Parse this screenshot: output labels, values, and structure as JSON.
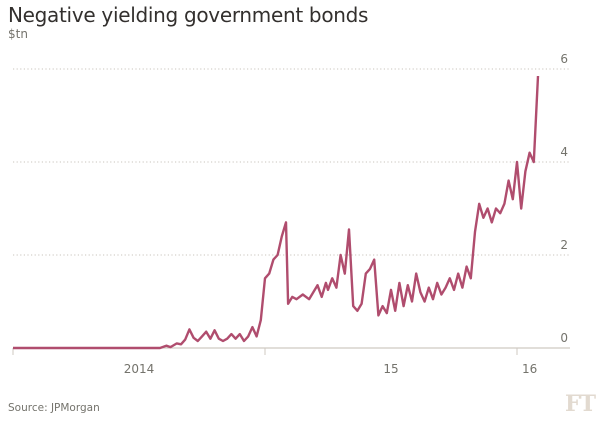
{
  "header": {
    "title": "Negative yielding government bonds",
    "unit": "$tn"
  },
  "footer": {
    "source": "Source: JPMorgan",
    "logo": "FT"
  },
  "colors": {
    "line": "#b04d6e",
    "grid": "#c9c4bd",
    "axis": "#cfc9c2",
    "text": "#74736c",
    "logo": "#e2dad0"
  },
  "chart_data": {
    "type": "line",
    "title": "Negative yielding government bonds",
    "ylabel": "$tn",
    "xlabel": "",
    "x_unit": "months since Jan 2014",
    "xlim": [
      0,
      26.4
    ],
    "ylim": [
      0,
      6
    ],
    "y_ticks": [
      0,
      2,
      4,
      6
    ],
    "y_tick_labels": [
      "0",
      "2",
      "4",
      "6"
    ],
    "x_ticks": [
      0,
      12,
      24
    ],
    "x_tick_labels": [
      {
        "label": "2014",
        "at": 6
      },
      {
        "label": "15",
        "at": 18
      },
      {
        "label": "16",
        "at": 24.6
      }
    ],
    "grid": true,
    "legend": "none",
    "series": [
      {
        "name": "Negative yielding government bonds",
        "x": [
          0,
          7.0,
          7.3,
          7.5,
          7.8,
          8.0,
          8.2,
          8.4,
          8.6,
          8.8,
          9.0,
          9.2,
          9.4,
          9.6,
          9.8,
          10.0,
          10.2,
          10.4,
          10.6,
          10.8,
          11.0,
          11.2,
          11.4,
          11.6,
          11.8,
          12.0,
          12.2,
          12.4,
          12.6,
          12.8,
          13.0,
          13.1,
          13.3,
          13.5,
          13.8,
          14.1,
          14.3,
          14.5,
          14.7,
          14.9,
          15.0,
          15.2,
          15.4,
          15.6,
          15.8,
          16.0,
          16.2,
          16.4,
          16.6,
          16.8,
          17.0,
          17.2,
          17.4,
          17.6,
          17.8,
          18.0,
          18.2,
          18.4,
          18.6,
          18.8,
          19.0,
          19.2,
          19.4,
          19.6,
          19.8,
          20.0,
          20.2,
          20.4,
          20.6,
          20.8,
          21.0,
          21.2,
          21.4,
          21.6,
          21.8,
          22.0,
          22.2,
          22.4,
          22.6,
          22.8,
          23.0,
          23.2,
          23.4,
          23.6,
          23.8,
          24.0,
          24.2,
          24.4,
          24.6,
          24.8,
          25.0
        ],
        "values": [
          0,
          0,
          0.05,
          0.02,
          0.1,
          0.08,
          0.18,
          0.4,
          0.22,
          0.15,
          0.25,
          0.35,
          0.2,
          0.38,
          0.2,
          0.15,
          0.2,
          0.3,
          0.2,
          0.3,
          0.15,
          0.25,
          0.45,
          0.25,
          0.6,
          1.5,
          1.6,
          1.9,
          2.0,
          2.4,
          2.7,
          0.95,
          1.1,
          1.05,
          1.15,
          1.05,
          1.2,
          1.35,
          1.1,
          1.4,
          1.25,
          1.5,
          1.3,
          2.0,
          1.6,
          2.55,
          0.9,
          0.8,
          0.95,
          1.6,
          1.7,
          1.9,
          0.7,
          0.9,
          0.75,
          1.25,
          0.8,
          1.4,
          0.9,
          1.35,
          1.0,
          1.6,
          1.2,
          1.0,
          1.3,
          1.05,
          1.4,
          1.15,
          1.3,
          1.5,
          1.25,
          1.6,
          1.3,
          1.75,
          1.5,
          2.5,
          3.1,
          2.8,
          3.0,
          2.7,
          3.0,
          2.9,
          3.1,
          3.6,
          3.2,
          4.0,
          3.0,
          3.8,
          4.2,
          4.0,
          5.85
        ]
      }
    ]
  }
}
